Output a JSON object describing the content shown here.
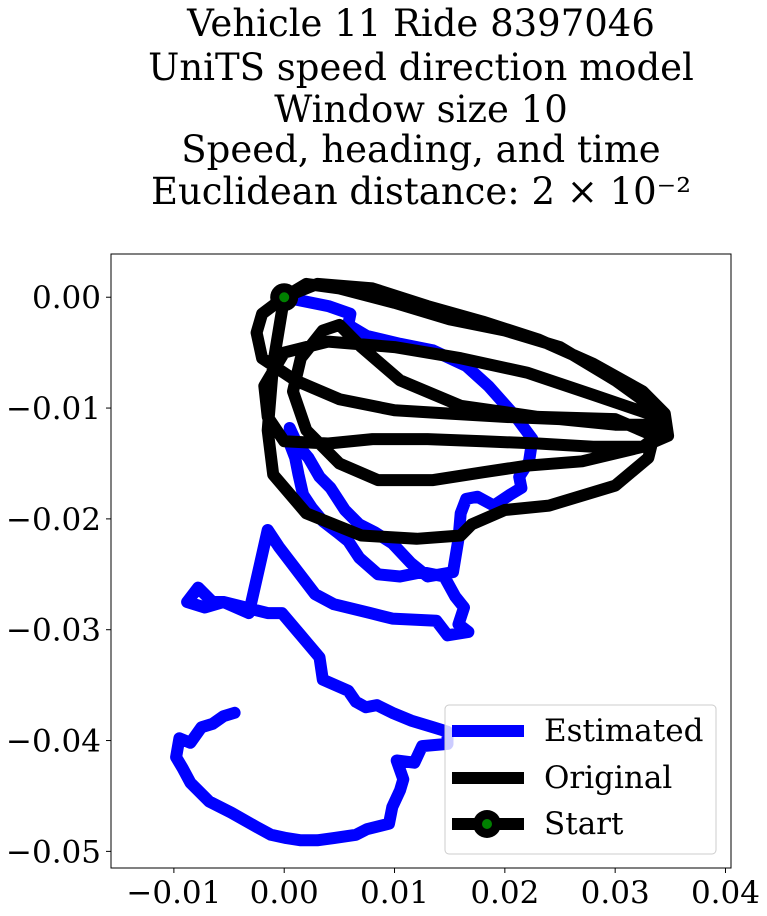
{
  "chart_data": {
    "type": "line",
    "title_lines": [
      "Vehicle 11 Ride 8397046",
      "UniTS speed direction model",
      "Window size 10",
      "Speed, heading, and time",
      "Euclidean distance: 2 × 10⁻²"
    ],
    "xlabel": "",
    "ylabel": "",
    "xlim": [
      -0.0157,
      0.0405
    ],
    "ylim": [
      -0.0515,
      0.0039
    ],
    "x_ticks": [
      -0.01,
      0.0,
      0.01,
      0.02,
      0.03,
      0.04
    ],
    "x_tick_labels": [
      "−0.01",
      "0.00",
      "0.01",
      "0.02",
      "0.03",
      "0.04"
    ],
    "y_ticks": [
      0.0,
      -0.01,
      -0.02,
      -0.03,
      -0.04,
      -0.05
    ],
    "y_tick_labels": [
      "0.00",
      "−0.01",
      "−0.02",
      "−0.03",
      "−0.04",
      "−0.05"
    ],
    "grid": false,
    "legend_position": "lower-right",
    "series": [
      {
        "name": "Estimated",
        "color": "#0000ff",
        "x": [
          0.0,
          0.004,
          0.006,
          0.0058,
          0.0075,
          0.0105,
          0.0135,
          0.0165,
          0.0185,
          0.021,
          0.0225,
          0.0222,
          0.0213,
          0.0215,
          0.0205,
          0.019,
          0.0175,
          0.0165,
          0.016,
          0.0158,
          0.0153,
          0.013,
          0.0115,
          0.0098,
          0.0082,
          0.0068,
          0.0055,
          0.0042,
          0.0032,
          0.0022,
          0.0012,
          0.0005,
          0.0005,
          0.001,
          0.0013,
          0.0017,
          0.0025,
          0.0035,
          0.0048,
          0.0058,
          0.0068,
          0.0085,
          0.0105,
          0.0125,
          0.0145,
          0.0155,
          0.0163,
          0.0158,
          0.0167,
          0.0148,
          0.0138,
          0.0098,
          0.0078,
          0.0045,
          0.0028,
          0.0018,
          0.0005,
          -0.0005,
          -0.0015,
          -0.0032,
          -0.0055,
          -0.0072,
          -0.0088,
          -0.0078,
          -0.0065,
          -0.0055,
          -0.0035,
          -0.0015,
          -0.0002,
          0.0015,
          0.0032,
          0.0035,
          0.0058,
          0.0065,
          0.0074,
          0.0084,
          0.0098,
          0.0115,
          0.0135,
          0.0148,
          0.0148,
          0.0125,
          0.0118,
          0.0102,
          0.0108,
          0.0105,
          0.0098,
          0.0095,
          0.0075,
          0.0065,
          0.0045,
          0.003,
          0.0015,
          0.0002,
          -0.0012,
          -0.0025,
          -0.0048,
          -0.0068,
          -0.0085,
          -0.0092,
          -0.0098,
          -0.0095,
          -0.0085,
          -0.0075,
          -0.0065,
          -0.0055,
          -0.0045
        ],
        "y": [
          0.0,
          -0.0008,
          -0.0015,
          -0.0025,
          -0.0035,
          -0.0042,
          -0.0048,
          -0.0062,
          -0.008,
          -0.0108,
          -0.0128,
          -0.0148,
          -0.0162,
          -0.0172,
          -0.0178,
          -0.0188,
          -0.018,
          -0.0182,
          -0.0195,
          -0.0218,
          -0.0248,
          -0.0252,
          -0.024,
          -0.0222,
          -0.0212,
          -0.0205,
          -0.0192,
          -0.0172,
          -0.0162,
          -0.0145,
          -0.0133,
          -0.0118,
          -0.0132,
          -0.0145,
          -0.016,
          -0.0178,
          -0.019,
          -0.0202,
          -0.0212,
          -0.022,
          -0.0235,
          -0.025,
          -0.0252,
          -0.0248,
          -0.0252,
          -0.027,
          -0.028,
          -0.0295,
          -0.0302,
          -0.0305,
          -0.0292,
          -0.029,
          -0.0285,
          -0.0277,
          -0.0268,
          -0.0255,
          -0.0238,
          -0.0225,
          -0.021,
          -0.0285,
          -0.0275,
          -0.028,
          -0.0275,
          -0.0262,
          -0.0275,
          -0.0275,
          -0.028,
          -0.0285,
          -0.0285,
          -0.0305,
          -0.0325,
          -0.0345,
          -0.0355,
          -0.0365,
          -0.037,
          -0.0368,
          -0.0375,
          -0.0382,
          -0.0388,
          -0.0392,
          -0.0403,
          -0.0405,
          -0.042,
          -0.0418,
          -0.0435,
          -0.0445,
          -0.046,
          -0.0475,
          -0.048,
          -0.0485,
          -0.0488,
          -0.049,
          -0.049,
          -0.0488,
          -0.0485,
          -0.0478,
          -0.0465,
          -0.0455,
          -0.0438,
          -0.0425,
          -0.0415,
          -0.0398,
          -0.0402,
          -0.0388,
          -0.0385,
          -0.0378,
          -0.0375
        ]
      },
      {
        "name": "Original",
        "color": "#000000",
        "x": [
          0.0,
          0.002,
          0.005,
          0.01,
          0.015,
          0.02,
          0.025,
          0.03,
          0.0335,
          0.0335,
          0.03,
          0.025,
          0.02,
          0.015,
          0.01,
          0.005,
          0.001,
          -0.002,
          -0.0025,
          -0.002,
          0.0,
          0.003,
          0.008,
          0.013,
          0.018,
          0.023,
          0.028,
          0.0325,
          0.0345,
          0.0348,
          0.0325,
          0.028,
          0.023,
          0.018,
          0.013,
          0.008,
          0.004,
          0.0,
          -0.0015,
          -0.0018,
          0.0,
          0.004,
          0.01,
          0.016,
          0.022,
          0.028,
          0.033,
          0.0345,
          0.0325,
          0.027,
          0.022,
          0.018,
          0.0135,
          0.0085,
          0.005,
          0.002,
          0.0008,
          0.0015,
          0.0035,
          0.005,
          0.007,
          0.0105,
          0.016,
          0.023,
          0.03,
          0.0335,
          0.033,
          0.03,
          0.024,
          0.02,
          0.017,
          0.016,
          0.012,
          0.007,
          0.002,
          -0.001,
          -0.0015,
          -0.001,
          0.0
        ],
        "y": [
          0.0,
          0.0012,
          0.0008,
          -0.0005,
          -0.002,
          -0.003,
          -0.0045,
          -0.0075,
          -0.01,
          -0.0115,
          -0.0115,
          -0.011,
          -0.0108,
          -0.0105,
          -0.0102,
          -0.0092,
          -0.0075,
          -0.0055,
          -0.0032,
          -0.0015,
          0.0,
          0.0012,
          0.0008,
          -0.0008,
          -0.0022,
          -0.0038,
          -0.006,
          -0.0085,
          -0.0105,
          -0.0125,
          -0.0135,
          -0.0135,
          -0.0132,
          -0.013,
          -0.0128,
          -0.0128,
          -0.0132,
          -0.013,
          -0.0108,
          -0.008,
          -0.005,
          -0.004,
          -0.0045,
          -0.0055,
          -0.0068,
          -0.0088,
          -0.0105,
          -0.012,
          -0.0135,
          -0.0148,
          -0.0152,
          -0.0158,
          -0.0165,
          -0.0165,
          -0.015,
          -0.012,
          -0.0085,
          -0.0055,
          -0.003,
          -0.0025,
          -0.0045,
          -0.0075,
          -0.0098,
          -0.0108,
          -0.011,
          -0.0125,
          -0.0145,
          -0.017,
          -0.0188,
          -0.0192,
          -0.0205,
          -0.0215,
          -0.0218,
          -0.0215,
          -0.0195,
          -0.016,
          -0.012,
          -0.006,
          0.0
        ]
      }
    ],
    "start_point": {
      "name": "Start",
      "x": 0.0,
      "y": 0.0,
      "marker_color": "#008000",
      "edge_color": "#000000"
    }
  }
}
